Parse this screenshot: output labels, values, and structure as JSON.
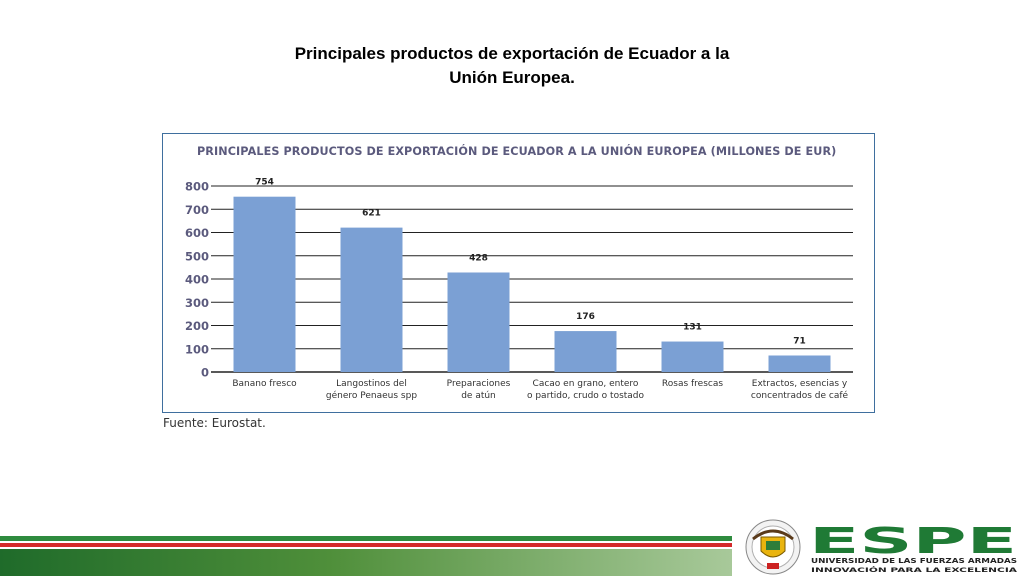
{
  "slide": {
    "title_line1": "Principales productos de exportación de Ecuador a la",
    "title_line2": "Unión Europea."
  },
  "chart_data": {
    "type": "bar",
    "title": "PRINCIPALES PRODUCTOS DE EXPORTACIÓN DE ECUADOR A LA UNIÓN EUROPEA (MILLONES DE EUR)",
    "categories": [
      [
        "Banano fresco"
      ],
      [
        "Langostinos del",
        "género Penaeus spp"
      ],
      [
        "Preparaciones",
        "de atún"
      ],
      [
        "Cacao en grano, entero",
        "o partido, crudo o tostado"
      ],
      [
        "Rosas frescas"
      ],
      [
        "Extractos, esencias y",
        "concentrados de café"
      ]
    ],
    "values": [
      754,
      621,
      428,
      176,
      131,
      71
    ],
    "data_labels": [
      "754",
      "621",
      "428",
      "176",
      "131",
      "71"
    ],
    "ylim": [
      0,
      800
    ],
    "yticks": [
      0,
      100,
      200,
      300,
      400,
      500,
      600,
      700,
      800
    ],
    "grid": true,
    "colors": {
      "bar": "#7ba0d4",
      "grid": "#222222",
      "axis_text": "#5b5a7d"
    }
  },
  "source": "Fuente: Eurostat.",
  "logo": {
    "name": "ESPE",
    "subtitle_line1": "UNIVERSIDAD DE LAS FUERZAS ARMADAS",
    "subtitle_line2": "INNOVACIÓN PARA LA EXCELENCIA",
    "color": "#1f7a35"
  }
}
